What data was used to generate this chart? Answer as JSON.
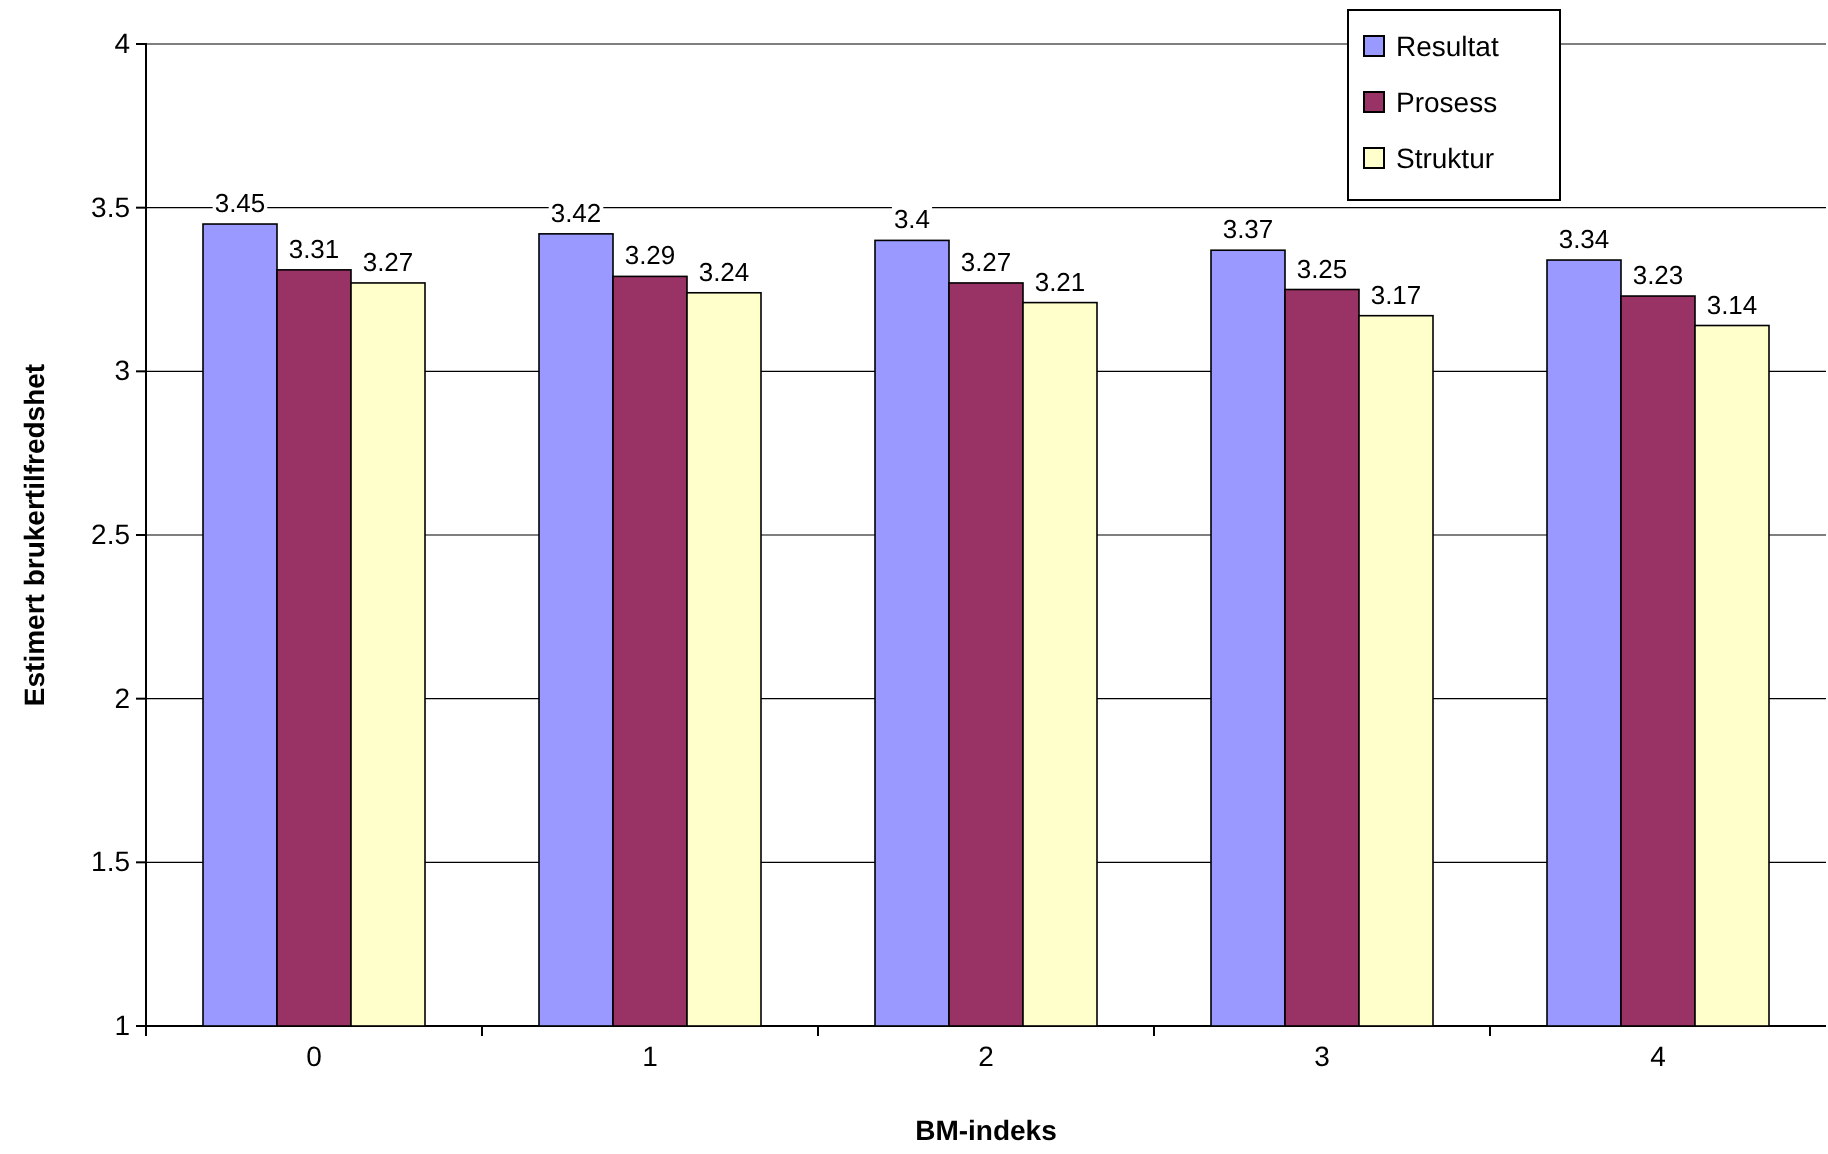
{
  "chart_data": {
    "type": "bar",
    "xlabel": "BM-indeks",
    "ylabel": "Estimert brukertilfredshet",
    "categories": [
      "0",
      "1",
      "2",
      "3",
      "4"
    ],
    "series": [
      {
        "name": "Resultat",
        "color": "#9999ff",
        "values": [
          3.45,
          3.42,
          3.4,
          3.37,
          3.34
        ]
      },
      {
        "name": "Prosess",
        "color": "#993366",
        "values": [
          3.31,
          3.29,
          3.27,
          3.25,
          3.23
        ]
      },
      {
        "name": "Struktur",
        "color": "#ffffcc",
        "values": [
          3.27,
          3.24,
          3.21,
          3.17,
          3.14
        ]
      }
    ],
    "ylim": [
      1,
      4
    ],
    "yticks": [
      1,
      1.5,
      2,
      2.5,
      3,
      3.5,
      4
    ],
    "grid": "y",
    "legend": "top right",
    "data_labels": true
  }
}
